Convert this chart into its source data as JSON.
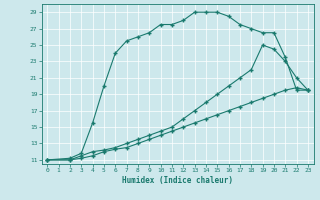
{
  "xlabel": "Humidex (Indice chaleur)",
  "background_color": "#cde8ec",
  "line_color": "#1a7a6e",
  "xlim": [
    -0.5,
    23.5
  ],
  "ylim": [
    10.5,
    30
  ],
  "yticks": [
    11,
    13,
    15,
    17,
    19,
    21,
    23,
    25,
    27,
    29
  ],
  "xticks": [
    0,
    1,
    2,
    3,
    4,
    5,
    6,
    7,
    8,
    9,
    10,
    11,
    12,
    13,
    14,
    15,
    16,
    17,
    18,
    19,
    20,
    21,
    22,
    23
  ],
  "curve1_x": [
    0,
    2,
    3,
    4,
    5,
    6,
    7,
    8,
    9,
    10,
    11,
    12,
    13,
    14,
    15,
    16,
    17,
    18,
    19,
    20,
    21,
    22,
    23
  ],
  "curve1_y": [
    11,
    11.2,
    11.8,
    15.5,
    20,
    24,
    25.5,
    26,
    26.5,
    27.5,
    27.5,
    28,
    29,
    29,
    29,
    28.5,
    27.5,
    27,
    26.5,
    26.5,
    23.5,
    19.5,
    19.5
  ],
  "curve2_x": [
    0,
    2,
    3,
    4,
    5,
    6,
    7,
    8,
    9,
    10,
    11,
    12,
    13,
    14,
    15,
    16,
    17,
    18,
    19,
    20,
    21,
    22,
    23
  ],
  "curve2_y": [
    11,
    11,
    11.5,
    12,
    12.2,
    12.5,
    13,
    13.5,
    14,
    14.5,
    15,
    16,
    17,
    18,
    19,
    20,
    21,
    22,
    25,
    24.5,
    23,
    21,
    19.5
  ],
  "curve3_x": [
    0,
    2,
    3,
    4,
    5,
    6,
    7,
    8,
    9,
    10,
    11,
    12,
    13,
    14,
    15,
    16,
    17,
    18,
    19,
    20,
    21,
    22,
    23
  ],
  "curve3_y": [
    11,
    11,
    11.2,
    11.5,
    12,
    12.3,
    12.5,
    13,
    13.5,
    14,
    14.5,
    15,
    15.5,
    16,
    16.5,
    17,
    17.5,
    18,
    18.5,
    19,
    19.5,
    19.8,
    19.5
  ]
}
